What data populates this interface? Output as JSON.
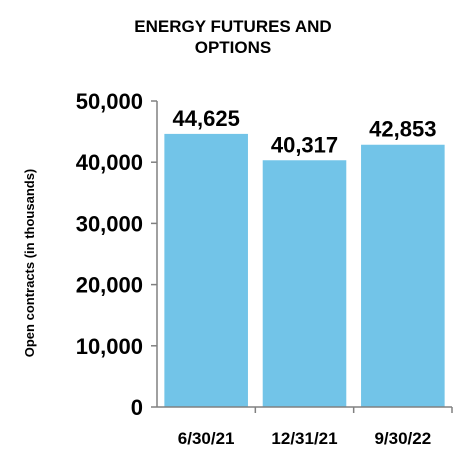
{
  "chart_data": {
    "type": "bar",
    "title_lines": [
      "ENERGY FUTURES AND",
      "OPTIONS"
    ],
    "ylabel": "Open contracts (in thousands)",
    "xlabel": "",
    "categories": [
      "6/30/21",
      "12/31/21",
      "9/30/22"
    ],
    "values": [
      44625,
      40317,
      42853
    ],
    "value_labels": [
      "44,625",
      "40,317",
      "42,853"
    ],
    "y_ticks": [
      0,
      10000,
      20000,
      30000,
      40000,
      50000
    ],
    "y_tick_labels": [
      "0",
      "10,000",
      "20,000",
      "30,000",
      "40,000",
      "50,000"
    ],
    "ylim": [
      0,
      50000
    ],
    "grid": false,
    "legend": "none",
    "bar_color": "#72c4e8",
    "axis_color": "#808080"
  }
}
